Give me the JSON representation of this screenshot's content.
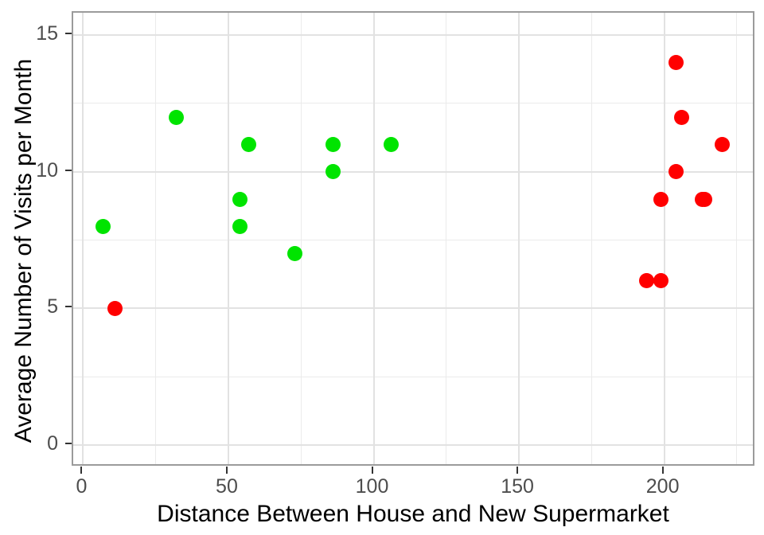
{
  "figure": {
    "background": "#FFFFFF",
    "panel_border_color": "#9B9B9B",
    "grid_major_color": "#E2E2E2",
    "grid_minor_color": "#EBEBEB",
    "tick_mark_color": "#333333",
    "tick_label_color": "#4D4D4D",
    "axis_title_color": "#000000"
  },
  "chart_data": {
    "type": "scatter",
    "title": "",
    "xlabel": "Distance Between House and New Supermarket",
    "ylabel": "Average Number of Visits per Month",
    "xlim": [
      -3.4,
      231.6
    ],
    "ylim": [
      -0.82,
      15.82
    ],
    "x_major_ticks": [
      0,
      50,
      100,
      150,
      200
    ],
    "x_minor_ticks": [
      25,
      75,
      125,
      175,
      225
    ],
    "y_major_ticks": [
      0,
      5,
      10,
      15
    ],
    "y_minor_ticks": [
      2.5,
      7.5,
      12.5
    ],
    "grid": true,
    "legend_position": "none",
    "marker_diameter_px": 19,
    "series": [
      {
        "name": "green-points",
        "color": "#00E400",
        "points": [
          [
            7,
            8
          ],
          [
            32,
            12
          ],
          [
            54,
            8
          ],
          [
            54,
            9
          ],
          [
            57,
            11
          ],
          [
            73,
            7
          ],
          [
            86,
            10
          ],
          [
            86,
            11
          ],
          [
            106,
            11
          ]
        ]
      },
      {
        "name": "red-points",
        "color": "#FF0000",
        "points": [
          [
            11,
            5
          ],
          [
            194,
            6
          ],
          [
            199,
            6
          ],
          [
            199,
            9
          ],
          [
            204,
            10
          ],
          [
            204,
            14
          ],
          [
            206,
            12
          ],
          [
            213,
            9
          ],
          [
            214,
            9
          ],
          [
            220,
            11
          ]
        ]
      }
    ]
  }
}
